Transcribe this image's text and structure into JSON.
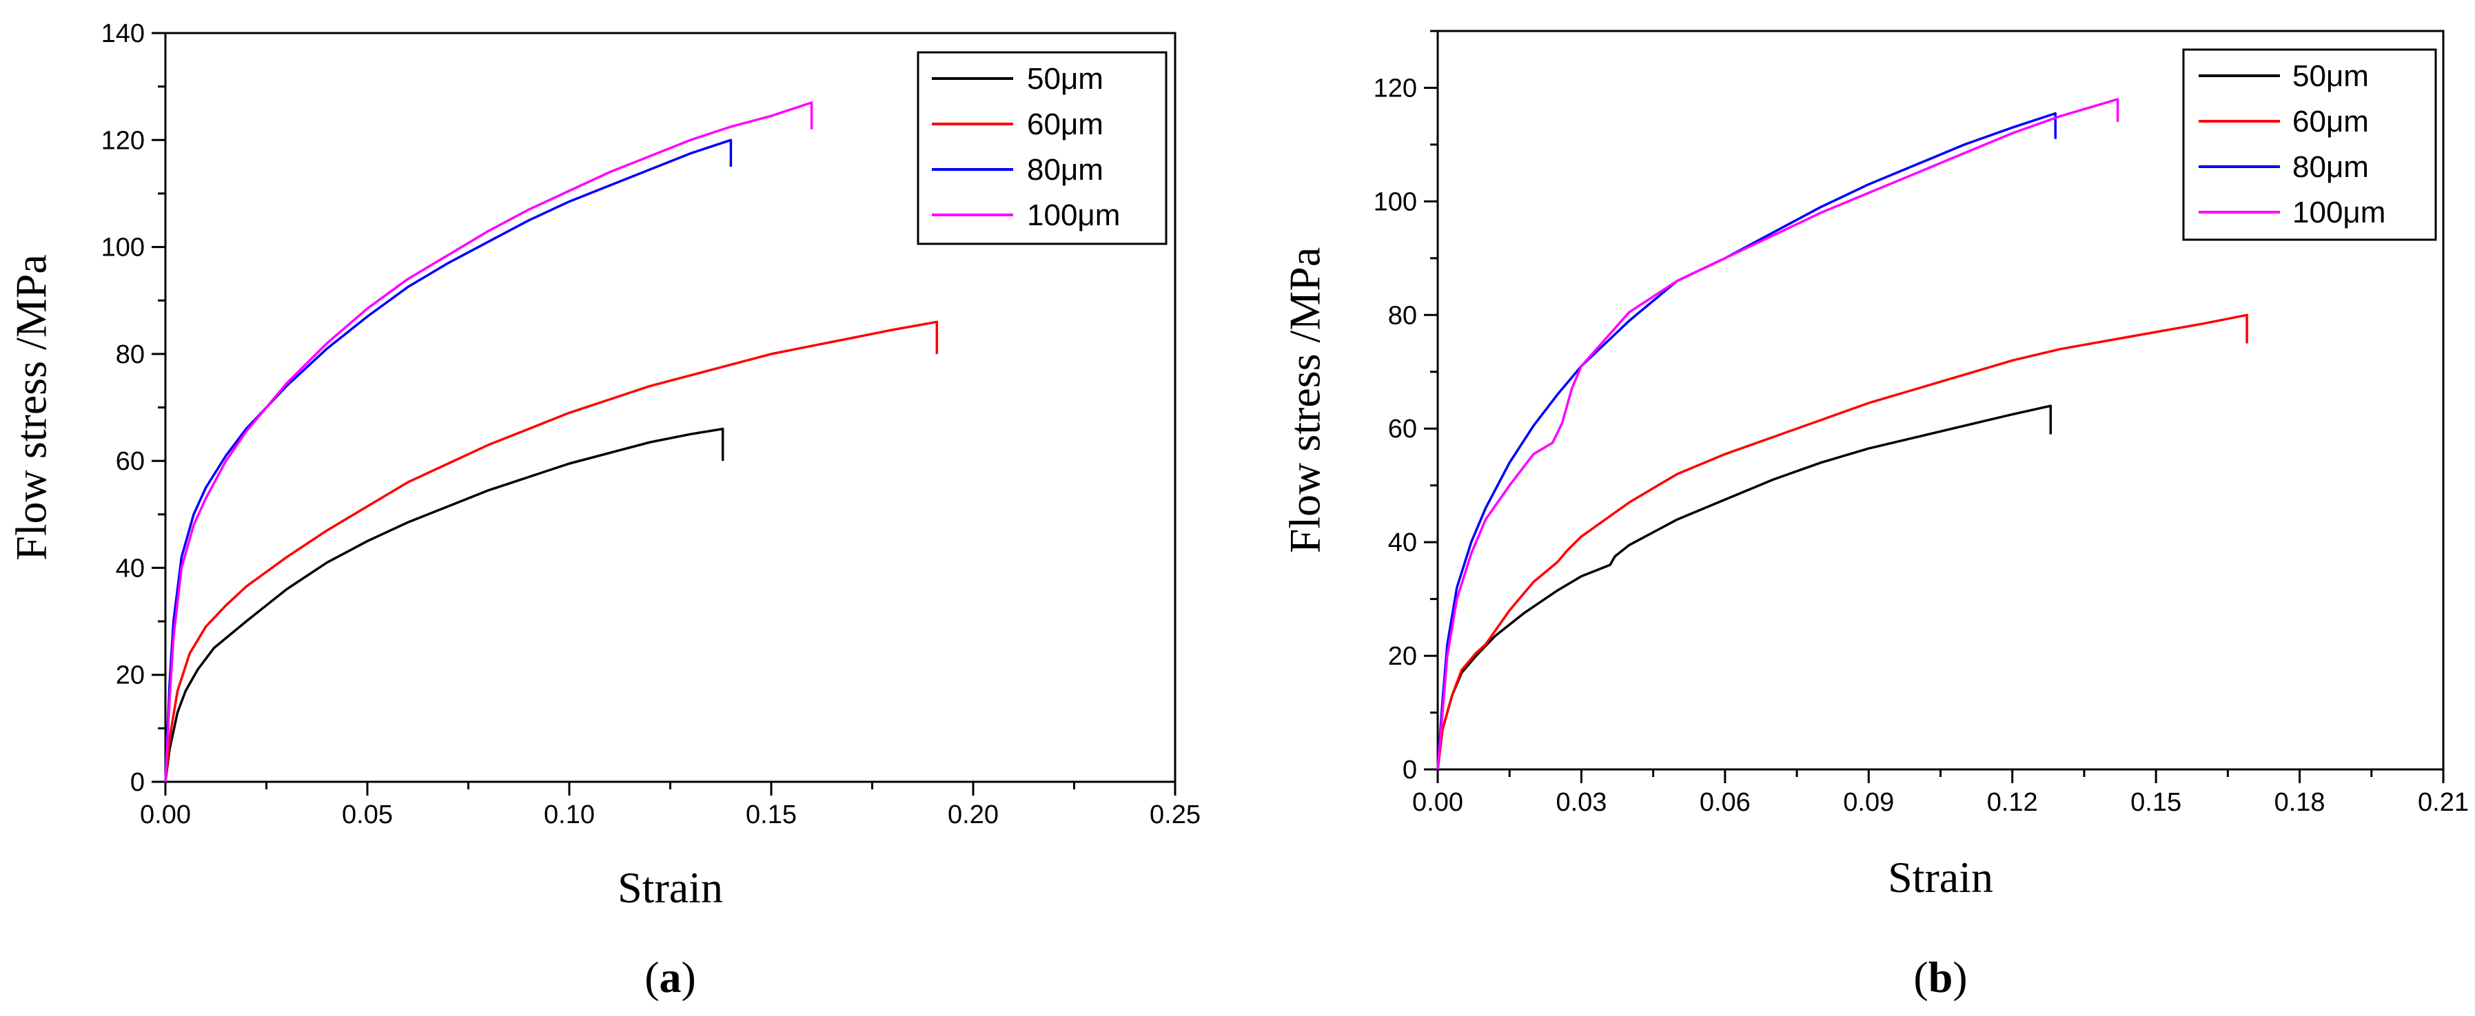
{
  "chart_data": [
    {
      "id": "a",
      "type": "line",
      "caption": {
        "open": "(",
        "letter": "a",
        "close": ")"
      },
      "xlabel": "Strain",
      "ylabel": "Flow stress /MPa",
      "xlim": [
        0,
        0.25
      ],
      "ylim": [
        0,
        140
      ],
      "xticks": [
        0,
        0.05,
        0.1,
        0.15,
        0.2,
        0.25
      ],
      "xtick_labels": [
        "0.00",
        "0.05",
        "0.10",
        "0.15",
        "0.20",
        "0.25"
      ],
      "yticks": [
        0,
        20,
        40,
        60,
        80,
        100,
        120,
        140
      ],
      "ytick_labels": [
        "0",
        "20",
        "40",
        "60",
        "80",
        "100",
        "120",
        "140"
      ],
      "legend": {
        "position": "top-right"
      },
      "series": [
        {
          "name": "50μm",
          "color": "#000000",
          "x": [
            0,
            0.001,
            0.003,
            0.005,
            0.008,
            0.012,
            0.02,
            0.03,
            0.04,
            0.05,
            0.06,
            0.07,
            0.08,
            0.09,
            0.1,
            0.11,
            0.12,
            0.13,
            0.138
          ],
          "y": [
            0,
            6,
            13,
            17,
            21,
            25,
            30,
            36,
            41,
            45,
            48.5,
            51.5,
            54.5,
            57,
            59.5,
            61.5,
            63.5,
            65,
            66
          ],
          "drop_to": 60
        },
        {
          "name": "60μm",
          "color": "#ff0000",
          "x": [
            0,
            0.001,
            0.003,
            0.006,
            0.01,
            0.015,
            0.02,
            0.03,
            0.04,
            0.05,
            0.06,
            0.07,
            0.08,
            0.09,
            0.1,
            0.11,
            0.12,
            0.13,
            0.14,
            0.15,
            0.16,
            0.17,
            0.18,
            0.191
          ],
          "y": [
            0,
            8,
            17,
            24,
            29,
            33,
            36.5,
            42,
            47,
            51.5,
            56,
            59.5,
            63,
            66,
            69,
            71.5,
            74,
            76,
            78,
            80,
            81.5,
            83,
            84.5,
            86
          ],
          "drop_to": 80
        },
        {
          "name": "80μm",
          "color": "#0000ff",
          "x": [
            0,
            0.001,
            0.002,
            0.004,
            0.007,
            0.01,
            0.015,
            0.02,
            0.03,
            0.04,
            0.05,
            0.06,
            0.07,
            0.08,
            0.09,
            0.1,
            0.11,
            0.12,
            0.13,
            0.14
          ],
          "y": [
            0,
            18,
            30,
            42,
            50,
            55,
            61,
            66,
            74,
            81,
            87,
            92.5,
            97,
            101,
            105,
            108.5,
            111.5,
            114.5,
            117.5,
            120
          ],
          "drop_to": 115
        },
        {
          "name": "100μm",
          "color": "#ff00ff",
          "x": [
            0,
            0.001,
            0.002,
            0.004,
            0.007,
            0.01,
            0.015,
            0.02,
            0.03,
            0.04,
            0.05,
            0.06,
            0.07,
            0.08,
            0.09,
            0.1,
            0.11,
            0.12,
            0.13,
            0.14,
            0.15,
            0.16
          ],
          "y": [
            0,
            15,
            27,
            40,
            48,
            53,
            60,
            65.5,
            74.5,
            82,
            88.5,
            94,
            98.5,
            103,
            107,
            110.5,
            114,
            117,
            120,
            122.5,
            124.5,
            127
          ],
          "drop_to": 122
        }
      ]
    },
    {
      "id": "b",
      "type": "line",
      "caption": {
        "open": "(",
        "letter": "b",
        "close": ")"
      },
      "xlabel": "Strain",
      "ylabel": "Flow stress /MPa",
      "xlim": [
        0,
        0.21
      ],
      "ylim": [
        0,
        130
      ],
      "xticks": [
        0,
        0.03,
        0.06,
        0.09,
        0.12,
        0.15,
        0.18,
        0.21
      ],
      "xtick_labels": [
        "0.00",
        "0.03",
        "0.06",
        "0.09",
        "0.12",
        "0.15",
        "0.18",
        "0.21"
      ],
      "yticks": [
        0,
        20,
        40,
        60,
        80,
        100,
        120
      ],
      "ytick_labels": [
        "0",
        "20",
        "40",
        "60",
        "80",
        "100",
        "120"
      ],
      "legend": {
        "position": "top-right"
      },
      "series": [
        {
          "name": "50μm",
          "color": "#000000",
          "x": [
            0,
            0.001,
            0.003,
            0.005,
            0.008,
            0.012,
            0.018,
            0.025,
            0.03,
            0.036,
            0.037,
            0.04,
            0.05,
            0.06,
            0.07,
            0.08,
            0.09,
            0.1,
            0.11,
            0.12,
            0.128
          ],
          "y": [
            0,
            7,
            13,
            17,
            20,
            23.5,
            27.5,
            31.5,
            34,
            36,
            37.5,
            39.5,
            44,
            47.5,
            51,
            54,
            56.5,
            58.5,
            60.5,
            62.5,
            64
          ],
          "drop_to": 59
        },
        {
          "name": "60μm",
          "color": "#ff0000",
          "x": [
            0,
            0.001,
            0.003,
            0.005,
            0.008,
            0.01,
            0.015,
            0.02,
            0.025,
            0.027,
            0.03,
            0.04,
            0.05,
            0.06,
            0.07,
            0.08,
            0.09,
            0.1,
            0.11,
            0.12,
            0.13,
            0.14,
            0.15,
            0.16,
            0.169
          ],
          "y": [
            0,
            7,
            13,
            17.5,
            20.5,
            22,
            28,
            33,
            36.5,
            38.5,
            41,
            47,
            52,
            55.5,
            58.5,
            61.5,
            64.5,
            67,
            69.5,
            72,
            74,
            75.5,
            77,
            78.5,
            80
          ],
          "drop_to": 75
        },
        {
          "name": "80μm",
          "color": "#0000ff",
          "x": [
            0,
            0.001,
            0.002,
            0.004,
            0.007,
            0.01,
            0.015,
            0.02,
            0.025,
            0.03,
            0.04,
            0.05,
            0.06,
            0.07,
            0.08,
            0.09,
            0.1,
            0.11,
            0.12,
            0.129
          ],
          "y": [
            0,
            12,
            22,
            32,
            40,
            46,
            54,
            60.5,
            66,
            71,
            79,
            86,
            90,
            94.5,
            99,
            103,
            106.5,
            110,
            113,
            115.5
          ],
          "drop_to": 111
        },
        {
          "name": "100μm",
          "color": "#ff00ff",
          "x": [
            0,
            0.001,
            0.002,
            0.004,
            0.007,
            0.01,
            0.015,
            0.02,
            0.024,
            0.026,
            0.028,
            0.03,
            0.04,
            0.05,
            0.06,
            0.07,
            0.08,
            0.09,
            0.1,
            0.11,
            0.12,
            0.13,
            0.142
          ],
          "y": [
            0,
            10,
            20,
            30,
            38,
            44,
            50,
            55.5,
            57.5,
            61,
            67,
            71,
            80.5,
            86,
            90,
            94,
            98,
            101.5,
            105,
            108.5,
            112,
            115,
            118
          ],
          "drop_to": 114
        }
      ]
    }
  ]
}
